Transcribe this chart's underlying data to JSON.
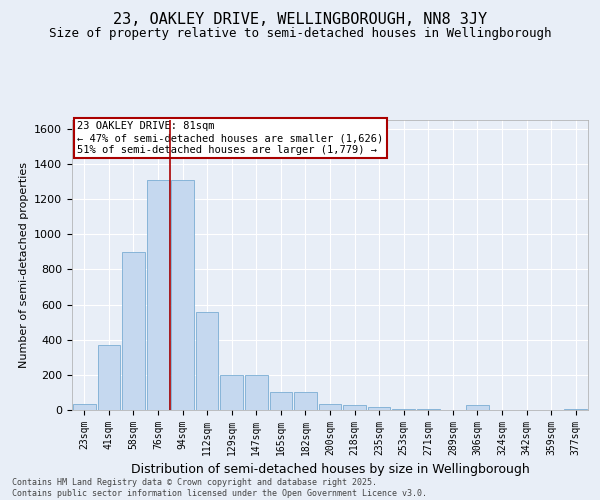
{
  "title": "23, OAKLEY DRIVE, WELLINGBOROUGH, NN8 3JY",
  "subtitle": "Size of property relative to semi-detached houses in Wellingborough",
  "xlabel": "Distribution of semi-detached houses by size in Wellingborough",
  "ylabel": "Number of semi-detached properties",
  "categories": [
    "23sqm",
    "41sqm",
    "58sqm",
    "76sqm",
    "94sqm",
    "112sqm",
    "129sqm",
    "147sqm",
    "165sqm",
    "182sqm",
    "200sqm",
    "218sqm",
    "235sqm",
    "253sqm",
    "271sqm",
    "289sqm",
    "306sqm",
    "324sqm",
    "342sqm",
    "359sqm",
    "377sqm"
  ],
  "values": [
    35,
    370,
    900,
    1310,
    1310,
    560,
    200,
    200,
    100,
    100,
    35,
    30,
    15,
    5,
    5,
    0,
    30,
    0,
    0,
    0,
    5
  ],
  "bar_color": "#c5d8ef",
  "bar_edge_color": "#7aadd4",
  "vline_x": 3.5,
  "vline_color": "#aa0000",
  "annotation_text": "23 OAKLEY DRIVE: 81sqm\n← 47% of semi-detached houses are smaller (1,626)\n51% of semi-detached houses are larger (1,779) →",
  "annotation_box_color": "#ffffff",
  "annotation_box_edge_color": "#aa0000",
  "ylim": [
    0,
    1650
  ],
  "footnote": "Contains HM Land Registry data © Crown copyright and database right 2025.\nContains public sector information licensed under the Open Government Licence v3.0.",
  "bg_color": "#e8eef7",
  "grid_color": "#ffffff",
  "title_fontsize": 11,
  "subtitle_fontsize": 9,
  "tick_fontsize": 7,
  "ylabel_fontsize": 8,
  "xlabel_fontsize": 9,
  "annotation_fontsize": 7.5,
  "footnote_fontsize": 6
}
